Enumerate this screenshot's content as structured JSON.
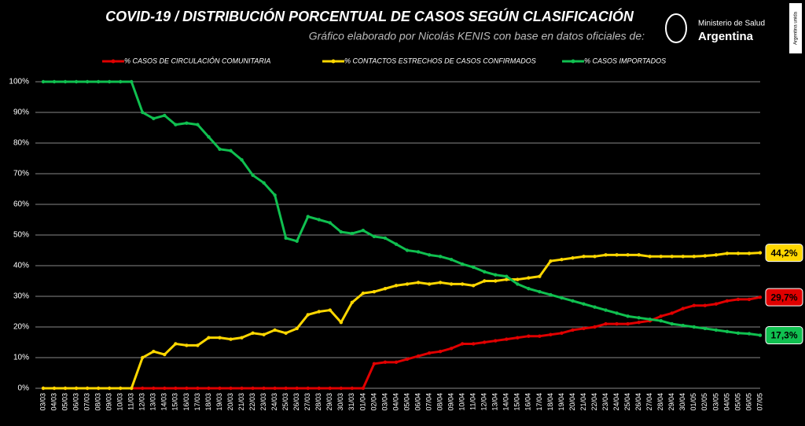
{
  "chart_data": {
    "type": "line",
    "title": "COVID-19  /  DISTRIBUCIÓN PORCENTUAL DE CASOS SEGÚN CLASIFICACIÓN",
    "subtitle": "Gráfico elaborado por Nicolás KENIS con base en datos oficiales de:",
    "logo": {
      "line1": "Ministerio de Salud",
      "line2": "Argentina",
      "side": "Argentina unida"
    },
    "categories": [
      "03/03",
      "04/03",
      "05/03",
      "06/03",
      "07/03",
      "08/03",
      "09/03",
      "10/03",
      "11/03",
      "12/03",
      "13/03",
      "14/03",
      "15/03",
      "16/03",
      "17/03",
      "18/03",
      "19/03",
      "20/03",
      "21/03",
      "22/03",
      "23/03",
      "24/03",
      "25/03",
      "26/03",
      "27/03",
      "28/03",
      "29/03",
      "30/03",
      "31/03",
      "01/04",
      "02/04",
      "03/04",
      "04/04",
      "05/04",
      "06/04",
      "07/04",
      "08/04",
      "09/04",
      "10/04",
      "11/04",
      "12/04",
      "13/04",
      "14/04",
      "15/04",
      "16/04",
      "17/04",
      "18/04",
      "19/04",
      "20/04",
      "21/04",
      "22/04",
      "23/04",
      "24/04",
      "25/04",
      "26/04",
      "27/04",
      "28/04",
      "29/04",
      "30/04",
      "01/05",
      "02/05",
      "03/05",
      "04/05",
      "05/05",
      "06/05",
      "07/05"
    ],
    "series": [
      {
        "name": "% CASOS DE CIRCULACIÓN COMUNITARIA",
        "color": "#e00000",
        "last_label": "29,7%",
        "values": [
          0,
          0,
          0,
          0,
          0,
          0,
          0,
          0,
          0,
          0,
          0,
          0,
          0,
          0,
          0,
          0,
          0,
          0,
          0,
          0,
          0,
          0,
          0,
          0,
          0,
          0,
          0,
          0,
          0,
          0,
          8,
          8.5,
          8.5,
          9.5,
          10.5,
          11.5,
          12,
          13,
          14.5,
          14.5,
          15,
          15.5,
          16,
          16.5,
          17,
          17,
          17.5,
          18,
          19,
          19.5,
          20,
          21,
          21,
          21,
          21.5,
          22,
          23.5,
          24.5,
          26,
          27,
          27,
          27.5,
          28.5,
          29,
          29,
          29.7
        ]
      },
      {
        "name": "% CONTACTOS ESTRECHOS DE CASOS CONFIRMADOS",
        "color": "#ffd700",
        "last_label": "44,2%",
        "values": [
          0,
          0,
          0,
          0,
          0,
          0,
          0,
          0,
          0,
          10,
          12,
          11,
          14.5,
          14,
          14,
          16.5,
          16.5,
          16,
          16.5,
          18,
          17.5,
          19,
          18,
          19.5,
          24,
          25,
          25.5,
          21.5,
          28,
          31,
          31.5,
          32.5,
          33.5,
          34,
          34.5,
          34,
          34.5,
          34,
          34,
          33.5,
          35,
          35,
          35.5,
          35.5,
          36,
          36.5,
          41.5,
          42,
          42.5,
          43,
          43,
          43.5,
          43.5,
          43.5,
          43.5,
          43,
          43,
          43,
          43,
          43,
          43.2,
          43.5,
          44,
          44,
          44,
          44.2
        ]
      },
      {
        "name": "% CASOS IMPORTADOS",
        "color": "#10c050",
        "last_label": "17,3%",
        "values": [
          100,
          100,
          100,
          100,
          100,
          100,
          100,
          100,
          100,
          90,
          88,
          89,
          86,
          86.5,
          86,
          82,
          78,
          77.5,
          74.5,
          69.5,
          67,
          63,
          49,
          48,
          56,
          55,
          54,
          51,
          50.5,
          51.5,
          49.5,
          49,
          47,
          45,
          44.5,
          43.5,
          43,
          42,
          40.5,
          39.5,
          38,
          37,
          36.5,
          34,
          32.5,
          31.5,
          30.5,
          29.5,
          28.5,
          27.5,
          26.5,
          25.5,
          24.5,
          23.5,
          23,
          22.5,
          22,
          21,
          20.5,
          20,
          19.5,
          19,
          18.5,
          18,
          17.8,
          17.3
        ]
      }
    ],
    "ylim": [
      0,
      100
    ],
    "yticks": [
      {
        "value": 0,
        "label": "0%"
      },
      {
        "value": 10,
        "label": "10%"
      },
      {
        "value": 20,
        "label": "20%"
      },
      {
        "value": 30,
        "label": "30%"
      },
      {
        "value": 40,
        "label": "40%"
      },
      {
        "value": 50,
        "label": "50%"
      },
      {
        "value": 60,
        "label": "60%"
      },
      {
        "value": 70,
        "label": "70%"
      },
      {
        "value": 80,
        "label": "80%"
      },
      {
        "value": 90,
        "label": "90%"
      },
      {
        "value": 100,
        "label": "100%"
      }
    ],
    "grid": true
  }
}
